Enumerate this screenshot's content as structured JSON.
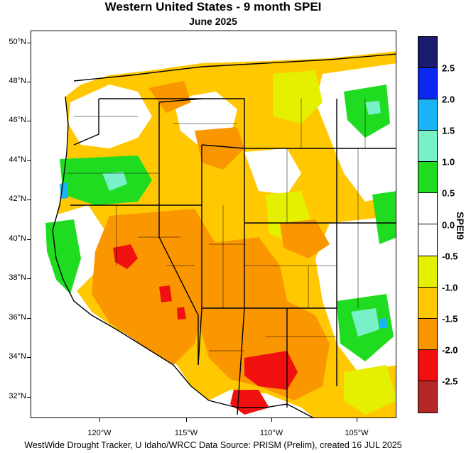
{
  "header": {
    "title": "Western United States - 9 month SPEI",
    "subtitle": "June 2025"
  },
  "footer": {
    "credit": "WestWide Drought Tracker, U Idaho/WRCC Data Source: PRISM (Prelim), created 16 JUL 2025"
  },
  "map": {
    "lat_labels": [
      "50°N",
      "48°N",
      "46°N",
      "44°N",
      "42°N",
      "40°N",
      "38°N",
      "36°N",
      "34°N",
      "32°N"
    ],
    "lon_labels": [
      "120°W",
      "115°W",
      "110°W",
      "105°W"
    ]
  },
  "legend": {
    "title": "SPEI9",
    "labels": [
      "2.5",
      "2.0",
      "1.5",
      "1.0",
      "0.5",
      "0.0",
      "-0.5",
      "-1.0",
      "-1.5",
      "-2.0",
      "-2.5"
    ],
    "colors": [
      "#1a1a6e",
      "#0a28f0",
      "#19b4f5",
      "#78f0c8",
      "#20dc20",
      "#ffffff",
      "#ffffff",
      "#e4f000",
      "#ffc800",
      "#fa9600",
      "#f01010",
      "#b42828"
    ]
  },
  "colors": {
    "exceptionally_dry": "#b42828",
    "extreme_dry": "#f01010",
    "severe_dry": "#fa9600",
    "moderate_dry": "#ffc800",
    "abnormally_dry": "#e4f000",
    "near_normal": "#ffffff",
    "moderately_wet": "#20dc20",
    "very_wet": "#78f0c8",
    "extremely_wet": "#19b4f5"
  }
}
